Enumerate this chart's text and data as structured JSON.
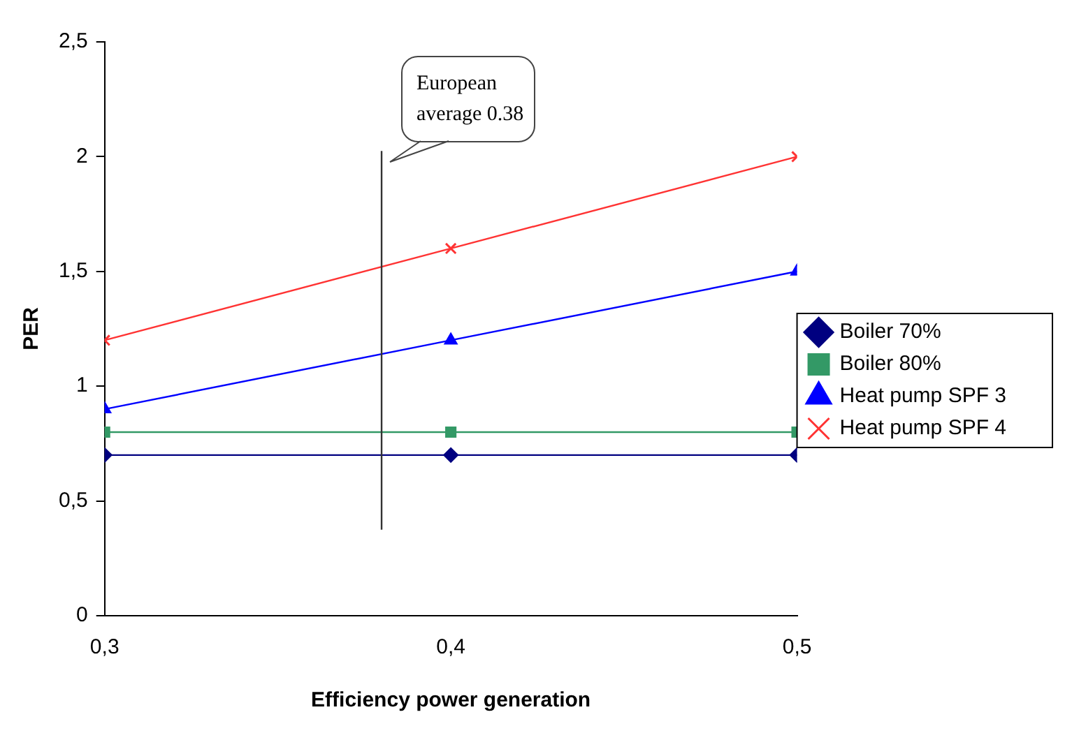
{
  "chart_data": {
    "type": "line",
    "xlabel": "Efficiency power generation",
    "ylabel": "PER",
    "x": [
      0.3,
      0.4,
      0.5
    ],
    "series": [
      {
        "name": "Boiler 70%",
        "color": "#000080",
        "marker": "diamond",
        "values": [
          0.7,
          0.7,
          0.7
        ]
      },
      {
        "name": "Boiler 80%",
        "color": "#339966",
        "marker": "square",
        "values": [
          0.8,
          0.8,
          0.8
        ]
      },
      {
        "name": "Heat pump SPF 3",
        "color": "#0000ff",
        "marker": "triangle",
        "values": [
          0.9,
          1.2,
          1.5
        ]
      },
      {
        "name": "Heat pump SPF 4",
        "color": "#ff3333",
        "marker": "cross",
        "values": [
          1.2,
          1.6,
          2.0
        ]
      }
    ],
    "xlim": [
      0.3,
      0.5
    ],
    "xticks": [
      {
        "value": 0.3,
        "label": "0,3"
      },
      {
        "value": 0.4,
        "label": "0,4"
      },
      {
        "value": 0.5,
        "label": "0,5"
      }
    ],
    "ylim": [
      0,
      2.5
    ],
    "yticks": [
      0,
      {
        "value": 0.5,
        "label": "0,5"
      },
      1,
      {
        "value": 1.5,
        "label": "1,5"
      },
      2,
      {
        "value": 2.5,
        "label": "2,5"
      }
    ],
    "ref_lines": [
      {
        "axis": "x",
        "value": 0.38,
        "label": "European average 0.38",
        "color": "#333333"
      }
    ],
    "grid": false,
    "legend": "right"
  }
}
